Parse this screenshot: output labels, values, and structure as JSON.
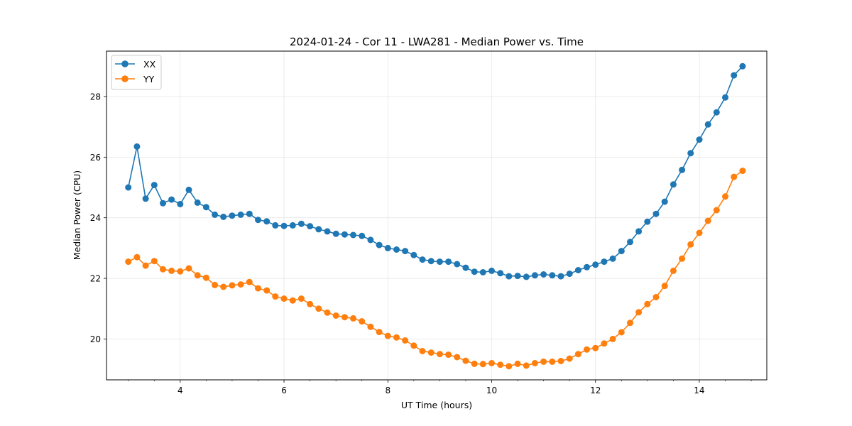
{
  "chart_data": {
    "type": "line",
    "title": "2024-01-24 - Cor 11 - LWA281 - Median Power vs. Time",
    "xlabel": "UT Time (hours)",
    "ylabel": "Median Power (CPU)",
    "xlim": [
      2.58,
      15.3
    ],
    "ylim": [
      18.65,
      29.5
    ],
    "xticks": [
      4,
      6,
      8,
      10,
      12,
      14
    ],
    "xtick_labels": [
      "4",
      "6",
      "8",
      "10",
      "12",
      "14"
    ],
    "yticks": [
      20,
      22,
      24,
      26,
      28
    ],
    "ytick_labels": [
      "20",
      "22",
      "24",
      "26",
      "28"
    ],
    "grid": true,
    "legend": "top-left",
    "x": [
      3.0,
      3.167,
      3.333,
      3.5,
      3.667,
      3.833,
      4.0,
      4.167,
      4.333,
      4.5,
      4.667,
      4.833,
      5.0,
      5.167,
      5.333,
      5.5,
      5.667,
      5.833,
      6.0,
      6.167,
      6.333,
      6.5,
      6.667,
      6.833,
      7.0,
      7.167,
      7.333,
      7.5,
      7.667,
      7.833,
      8.0,
      8.167,
      8.333,
      8.5,
      8.667,
      8.833,
      9.0,
      9.167,
      9.333,
      9.5,
      9.667,
      9.833,
      10.0,
      10.167,
      10.333,
      10.5,
      10.667,
      10.833,
      11.0,
      11.167,
      11.333,
      11.5,
      11.667,
      11.833,
      12.0,
      12.167,
      12.333,
      12.5,
      12.667,
      12.833,
      13.0,
      13.167,
      13.333,
      13.5,
      13.667,
      13.833,
      14.0,
      14.167,
      14.333,
      14.5,
      14.667,
      14.833
    ],
    "series": [
      {
        "name": "XX",
        "color": "#1f77b4",
        "values": [
          25.0,
          26.35,
          24.63,
          25.08,
          24.48,
          24.6,
          24.45,
          24.92,
          24.5,
          24.35,
          24.1,
          24.03,
          24.07,
          24.1,
          24.13,
          23.93,
          23.88,
          23.75,
          23.73,
          23.75,
          23.8,
          23.72,
          23.62,
          23.55,
          23.47,
          23.45,
          23.43,
          23.4,
          23.27,
          23.1,
          23.0,
          22.95,
          22.9,
          22.77,
          22.62,
          22.57,
          22.55,
          22.55,
          22.47,
          22.35,
          22.22,
          22.2,
          22.25,
          22.17,
          22.07,
          22.08,
          22.05,
          22.1,
          22.13,
          22.1,
          22.07,
          22.15,
          22.27,
          22.37,
          22.45,
          22.55,
          22.65,
          22.9,
          23.2,
          23.55,
          23.87,
          24.13,
          24.53,
          25.1,
          25.58,
          26.13,
          26.58,
          27.08,
          27.48,
          27.97,
          28.7,
          29.0
        ]
      },
      {
        "name": "YY",
        "color": "#ff7f0e",
        "values": [
          22.55,
          22.7,
          22.42,
          22.57,
          22.3,
          22.25,
          22.23,
          22.33,
          22.1,
          22.02,
          21.78,
          21.72,
          21.77,
          21.8,
          21.88,
          21.67,
          21.6,
          21.4,
          21.33,
          21.27,
          21.33,
          21.15,
          21.0,
          20.87,
          20.77,
          20.72,
          20.68,
          20.58,
          20.4,
          20.23,
          20.1,
          20.05,
          19.95,
          19.78,
          19.6,
          19.55,
          19.5,
          19.48,
          19.4,
          19.28,
          19.18,
          19.17,
          19.2,
          19.15,
          19.1,
          19.18,
          19.12,
          19.2,
          19.25,
          19.25,
          19.27,
          19.35,
          19.5,
          19.65,
          19.7,
          19.85,
          20.0,
          20.22,
          20.53,
          20.88,
          21.15,
          21.38,
          21.75,
          22.25,
          22.65,
          23.12,
          23.5,
          23.9,
          24.25,
          24.7,
          25.35,
          25.55
        ]
      }
    ]
  }
}
